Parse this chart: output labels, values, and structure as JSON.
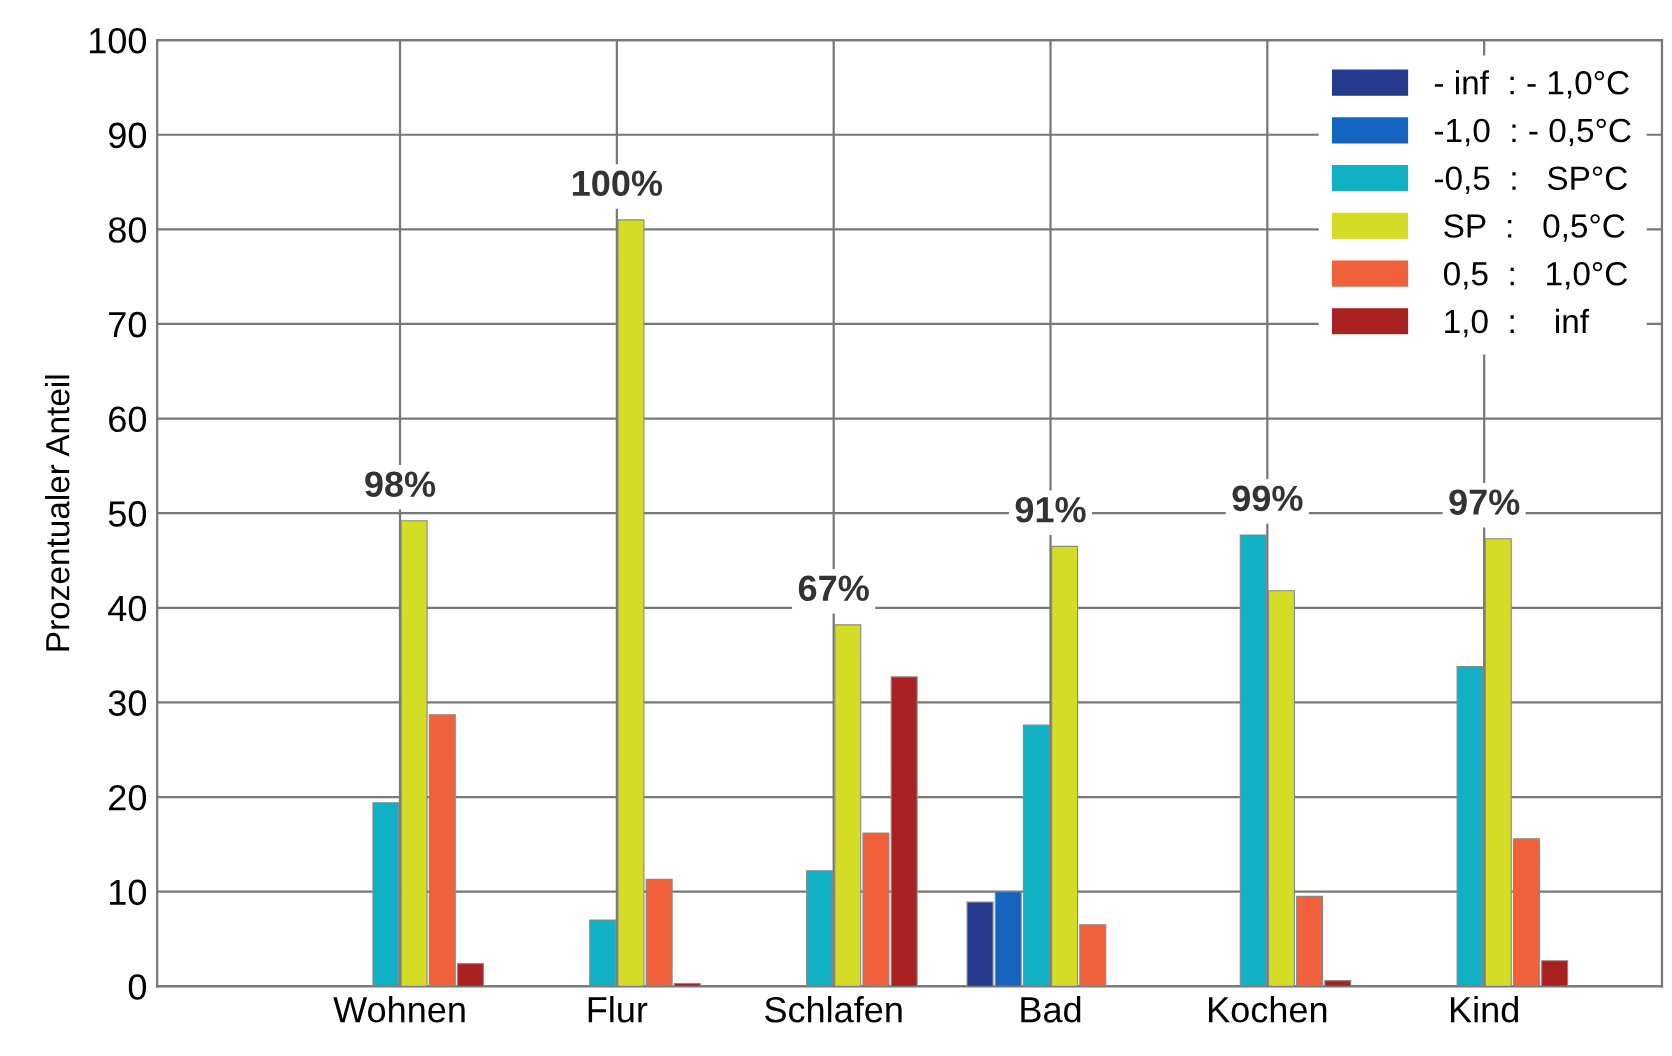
{
  "chart_data": {
    "type": "bar",
    "ylabel": "Prozentualer Anteil",
    "categories": [
      "Wohnen",
      "Flur",
      "Schlafen",
      "Bad",
      "Kochen",
      "Kind"
    ],
    "series": [
      {
        "name": "- inf  : - 1,0°C",
        "color": "#253a8c",
        "values": [
          null,
          null,
          null,
          8.9,
          null,
          null
        ]
      },
      {
        "name": "-1,0  : - 0,5°C",
        "color": "#1565c0",
        "values": [
          null,
          null,
          null,
          10.0,
          null,
          null
        ]
      },
      {
        "name": "-0,5  :   SP°C",
        "color": "#12b0c4",
        "values": [
          19.4,
          7.0,
          12.2,
          27.6,
          47.7,
          33.8
        ]
      },
      {
        "name": " SP  :   0,5°C",
        "color": "#d4dc26",
        "values": [
          49.2,
          81,
          38.2,
          46.5,
          41.8,
          47.3
        ]
      },
      {
        "name": " 0,5  :   1,0°C",
        "color": "#f0603a",
        "values": [
          28.7,
          11.3,
          16.2,
          6.5,
          9.5,
          15.6
        ]
      },
      {
        "name": " 1,0  :    inf",
        "color": "#a82020",
        "values": [
          2.4,
          0.3,
          32.7,
          null,
          0.6,
          2.7
        ]
      }
    ],
    "ylim": [
      0,
      100
    ],
    "yticks": [
      0,
      10,
      20,
      30,
      40,
      50,
      60,
      70,
      80,
      90,
      100
    ],
    "grid": true,
    "legend": "top right",
    "annotations": [
      "98%",
      "100%",
      "67%",
      "91%",
      "99%",
      "97%"
    ]
  }
}
